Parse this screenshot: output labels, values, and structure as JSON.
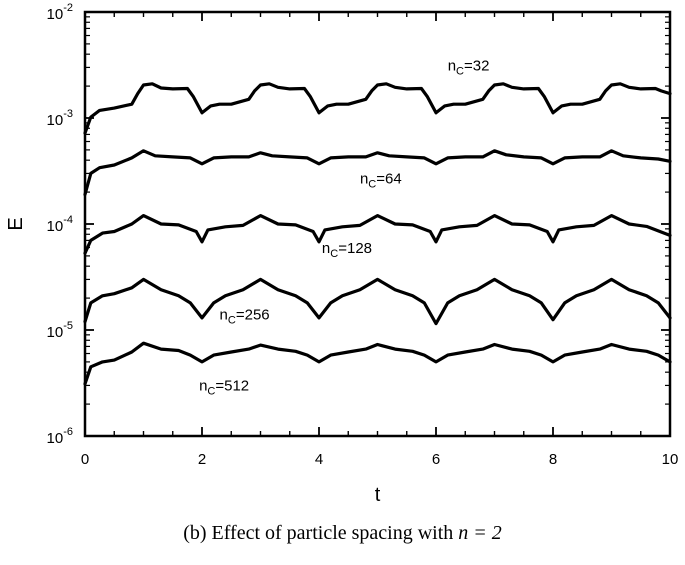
{
  "chart_data": {
    "type": "line",
    "xlabel": "t",
    "ylabel": "E",
    "xlim": [
      0,
      10
    ],
    "ylim": [
      1e-06,
      0.01
    ],
    "yscale": "log",
    "grid": false,
    "x_ticks": [
      {
        "value": 0,
        "label": "0"
      },
      {
        "value": 2,
        "label": "2"
      },
      {
        "value": 4,
        "label": "4"
      },
      {
        "value": 6,
        "label": "6"
      },
      {
        "value": 8,
        "label": "8"
      },
      {
        "value": 10,
        "label": "10"
      }
    ],
    "y_ticks": [
      {
        "value": 1e-06,
        "base": "10",
        "exp": "-6"
      },
      {
        "value": 1e-05,
        "base": "10",
        "exp": "-5"
      },
      {
        "value": 0.0001,
        "base": "10",
        "exp": "-4"
      },
      {
        "value": 0.001,
        "base": "10",
        "exp": "-3"
      },
      {
        "value": 0.01,
        "base": "10",
        "exp": "-2"
      }
    ],
    "series": [
      {
        "label_base": "n",
        "label_sub": "C",
        "label_value": "=32",
        "label_at": {
          "x": 6.2,
          "y": 0.0028
        },
        "x": [
          0,
          0.1,
          0.25,
          0.5,
          0.8,
          0.9,
          1.0,
          1.15,
          1.3,
          1.5,
          1.75,
          1.85,
          2.0,
          2.15,
          2.3,
          2.5,
          2.8,
          2.9,
          3.0,
          3.15,
          3.3,
          3.5,
          3.75,
          3.85,
          4.0,
          4.15,
          4.3,
          4.5,
          4.8,
          4.9,
          5.0,
          5.15,
          5.3,
          5.5,
          5.75,
          5.85,
          6.0,
          6.15,
          6.3,
          6.5,
          6.8,
          6.9,
          7.0,
          7.15,
          7.3,
          7.5,
          7.75,
          7.85,
          8.0,
          8.15,
          8.3,
          8.5,
          8.8,
          8.9,
          9.0,
          9.15,
          9.3,
          9.5,
          9.75,
          9.85,
          10.0
        ],
        "y": [
          0.00072,
          0.00102,
          0.00118,
          0.00124,
          0.00135,
          0.0017,
          0.00205,
          0.0021,
          0.00192,
          0.00188,
          0.0019,
          0.0016,
          0.00112,
          0.0013,
          0.00135,
          0.00135,
          0.0015,
          0.0018,
          0.00205,
          0.0021,
          0.00195,
          0.00188,
          0.0019,
          0.0016,
          0.00112,
          0.0013,
          0.00135,
          0.00135,
          0.0015,
          0.0018,
          0.00205,
          0.0021,
          0.00195,
          0.00188,
          0.0019,
          0.0016,
          0.00112,
          0.0013,
          0.00135,
          0.00135,
          0.0015,
          0.0018,
          0.00205,
          0.0021,
          0.00195,
          0.00188,
          0.0019,
          0.0016,
          0.00112,
          0.0013,
          0.00135,
          0.00135,
          0.0015,
          0.0018,
          0.00205,
          0.0021,
          0.00195,
          0.00188,
          0.0019,
          0.0018,
          0.0017
        ]
      },
      {
        "label_base": "n",
        "label_sub": "C",
        "label_value": "=64",
        "label_at": {
          "x": 4.7,
          "y": 0.00024
        },
        "x": [
          0,
          0.1,
          0.25,
          0.5,
          0.8,
          1.0,
          1.2,
          1.5,
          1.8,
          2.0,
          2.2,
          2.5,
          2.8,
          3.0,
          3.2,
          3.5,
          3.8,
          4.0,
          4.2,
          4.5,
          4.8,
          5.0,
          5.2,
          5.5,
          5.8,
          6.0,
          6.2,
          6.5,
          6.8,
          7.0,
          7.2,
          7.5,
          7.8,
          8.0,
          8.2,
          8.5,
          8.8,
          9.0,
          9.2,
          9.5,
          9.8,
          10.0
        ],
        "y": [
          0.00019,
          0.0003,
          0.00034,
          0.00036,
          0.00042,
          0.00049,
          0.00044,
          0.00043,
          0.00042,
          0.00037,
          0.00042,
          0.00043,
          0.00043,
          0.00047,
          0.00044,
          0.00043,
          0.00042,
          0.00037,
          0.00042,
          0.00043,
          0.00043,
          0.00047,
          0.00044,
          0.00043,
          0.00042,
          0.00037,
          0.00042,
          0.00043,
          0.00043,
          0.00049,
          0.00045,
          0.00043,
          0.00042,
          0.00037,
          0.00042,
          0.00043,
          0.00043,
          0.00049,
          0.00044,
          0.00042,
          0.00041,
          0.00039
        ]
      },
      {
        "label_base": "n",
        "label_sub": "C",
        "label_value": "=128",
        "label_at": {
          "x": 4.05,
          "y": 5.3e-05
        },
        "x": [
          0,
          0.1,
          0.3,
          0.5,
          0.8,
          1.0,
          1.3,
          1.6,
          1.9,
          2.0,
          2.1,
          2.4,
          2.7,
          3.0,
          3.3,
          3.6,
          3.9,
          4.0,
          4.1,
          4.4,
          4.7,
          5.0,
          5.3,
          5.6,
          5.9,
          6.0,
          6.1,
          6.4,
          6.7,
          7.0,
          7.3,
          7.6,
          7.9,
          8.0,
          8.1,
          8.4,
          8.7,
          9.0,
          9.3,
          9.6,
          9.9,
          10.0
        ],
        "y": [
          5.3e-05,
          7e-05,
          8.2e-05,
          8.5e-05,
          0.0001,
          0.00012,
          0.0001,
          9.8e-05,
          8.5e-05,
          6.8e-05,
          8.8e-05,
          9.4e-05,
          9.7e-05,
          0.00012,
          0.0001,
          9.8e-05,
          8.5e-05,
          6.8e-05,
          8.8e-05,
          9.4e-05,
          9.7e-05,
          0.00012,
          0.0001,
          9.8e-05,
          8.5e-05,
          6.8e-05,
          8.8e-05,
          9.4e-05,
          9.7e-05,
          0.00012,
          0.0001,
          9.8e-05,
          8.5e-05,
          6.8e-05,
          8.8e-05,
          9.4e-05,
          9.7e-05,
          0.00012,
          0.0001,
          9.5e-05,
          8.2e-05,
          7.8e-05
        ]
      },
      {
        "label_base": "n",
        "label_sub": "C",
        "label_value": "=256",
        "label_at": {
          "x": 2.3,
          "y": 1.25e-05
        },
        "x": [
          0,
          0.1,
          0.3,
          0.5,
          0.8,
          1.0,
          1.3,
          1.6,
          1.8,
          2.0,
          2.2,
          2.4,
          2.7,
          3.0,
          3.3,
          3.6,
          3.8,
          4.0,
          4.2,
          4.4,
          4.7,
          5.0,
          5.3,
          5.6,
          5.8,
          6.0,
          6.2,
          6.4,
          6.7,
          7.0,
          7.3,
          7.6,
          7.8,
          8.0,
          8.2,
          8.4,
          8.7,
          9.0,
          9.3,
          9.6,
          9.8,
          10.0
        ],
        "y": [
          1.2e-05,
          1.8e-05,
          2.1e-05,
          2.2e-05,
          2.5e-05,
          3e-05,
          2.4e-05,
          2.1e-05,
          1.8e-05,
          1.3e-05,
          1.8e-05,
          2.1e-05,
          2.4e-05,
          3e-05,
          2.4e-05,
          2.1e-05,
          1.8e-05,
          1.3e-05,
          1.8e-05,
          2.1e-05,
          2.4e-05,
          3e-05,
          2.4e-05,
          2.1e-05,
          1.8e-05,
          1.15e-05,
          1.8e-05,
          2.1e-05,
          2.4e-05,
          3e-05,
          2.4e-05,
          2.1e-05,
          1.8e-05,
          1.25e-05,
          1.8e-05,
          2.1e-05,
          2.4e-05,
          3e-05,
          2.4e-05,
          2.1e-05,
          1.8e-05,
          1.3e-05
        ]
      },
      {
        "label_base": "n",
        "label_sub": "C",
        "label_value": "=512",
        "label_at": {
          "x": 1.95,
          "y": 2.7e-06
        },
        "x": [
          0,
          0.1,
          0.3,
          0.5,
          0.8,
          1.0,
          1.3,
          1.6,
          1.8,
          2.0,
          2.2,
          2.5,
          2.8,
          3.0,
          3.3,
          3.6,
          3.8,
          4.0,
          4.2,
          4.5,
          4.8,
          5.0,
          5.3,
          5.6,
          5.8,
          6.0,
          6.2,
          6.5,
          6.8,
          7.0,
          7.3,
          7.6,
          7.8,
          8.0,
          8.2,
          8.5,
          8.8,
          9.0,
          9.3,
          9.6,
          9.8,
          10.0
        ],
        "y": [
          3.1e-06,
          4.5e-06,
          5e-06,
          5.2e-06,
          6.2e-06,
          7.5e-06,
          6.6e-06,
          6.4e-06,
          5.8e-06,
          5e-06,
          5.8e-06,
          6.2e-06,
          6.6e-06,
          7.2e-06,
          6.6e-06,
          6.3e-06,
          5.8e-06,
          5e-06,
          5.8e-06,
          6.2e-06,
          6.6e-06,
          7.3e-06,
          6.6e-06,
          6.3e-06,
          5.8e-06,
          5e-06,
          5.8e-06,
          6.2e-06,
          6.6e-06,
          7.3e-06,
          6.6e-06,
          6.3e-06,
          5.8e-06,
          5e-06,
          5.8e-06,
          6.2e-06,
          6.6e-06,
          7.3e-06,
          6.6e-06,
          6.3e-06,
          5.8e-06,
          5e-06
        ]
      }
    ]
  },
  "caption": {
    "text": "(b) Effect of particle spacing with",
    "math": "n = 2"
  }
}
